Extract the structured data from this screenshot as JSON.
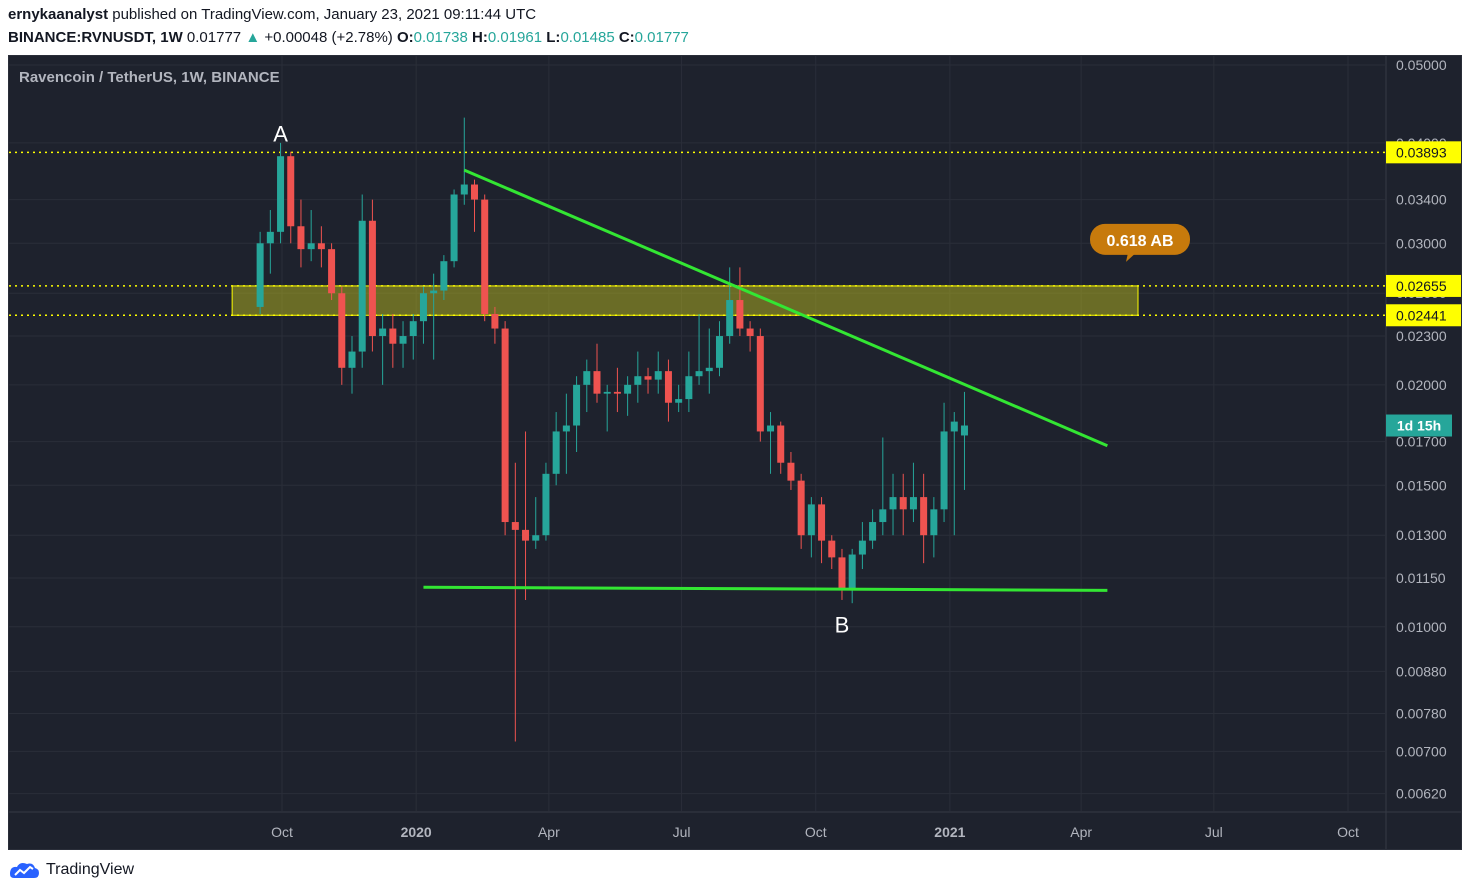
{
  "header": {
    "author": "ernykaanalyst",
    "published_text": "published on TradingView.com, January 23, 2021 09:11:44 UTC",
    "symbol": "BINANCE:RVNUSDT, 1W",
    "last": "0.01777",
    "change": "+0.00048 (+2.78%)",
    "o_label": "O:",
    "o": "0.01738",
    "h_label": "H:",
    "h": "0.01961",
    "l_label": "L:",
    "l": "0.01485",
    "c_label": "C:",
    "c": "0.01777"
  },
  "chart_title": "Ravencoin / TetherUS, 1W, BINANCE",
  "footer": {
    "brand": "TradingView"
  },
  "colors": {
    "bg": "#1e222d",
    "up": "#26a69a",
    "down": "#ef5350",
    "trend": "#33e633",
    "level": "#ffff00",
    "zone": "#b5b520",
    "bubble": "#c77a0c"
  },
  "chart_data": {
    "type": "candlestick",
    "title": "Ravencoin / TetherUS, 1W, BINANCE",
    "scale": "log",
    "ylim": [
      0.0059,
      0.0513
    ],
    "y_ticks": [
      "0.05000",
      "0.04000",
      "0.03400",
      "0.03000",
      "0.02600",
      "0.02300",
      "0.02000",
      "0.01700",
      "0.01500",
      "0.01300",
      "0.01150",
      "0.01000",
      "0.00880",
      "0.00780",
      "0.00700",
      "0.00620"
    ],
    "x_ticks": [
      {
        "label": "Oct",
        "date": "2019-10-01"
      },
      {
        "label": "2020",
        "date": "2020-01-01",
        "bold": true
      },
      {
        "label": "Apr",
        "date": "2020-04-01"
      },
      {
        "label": "Jul",
        "date": "2020-07-01"
      },
      {
        "label": "Oct",
        "date": "2020-10-01"
      },
      {
        "label": "2021",
        "date": "2021-01-01",
        "bold": true
      },
      {
        "label": "Apr",
        "date": "2021-04-01"
      },
      {
        "label": "Jul",
        "date": "2021-07-01"
      },
      {
        "label": "Oct",
        "date": "2021-10-01"
      }
    ],
    "candles": [
      {
        "date": "2019-09-16",
        "o": 0.025,
        "h": 0.031,
        "l": 0.0245,
        "c": 0.03
      },
      {
        "date": "2019-09-23",
        "o": 0.03,
        "h": 0.033,
        "l": 0.0275,
        "c": 0.031
      },
      {
        "date": "2019-09-30",
        "o": 0.031,
        "h": 0.04,
        "l": 0.03,
        "c": 0.0385
      },
      {
        "date": "2019-10-07",
        "o": 0.0385,
        "h": 0.039,
        "l": 0.03,
        "c": 0.0315
      },
      {
        "date": "2019-10-14",
        "o": 0.0315,
        "h": 0.034,
        "l": 0.028,
        "c": 0.0295
      },
      {
        "date": "2019-10-21",
        "o": 0.0295,
        "h": 0.033,
        "l": 0.0285,
        "c": 0.03
      },
      {
        "date": "2019-10-28",
        "o": 0.03,
        "h": 0.0315,
        "l": 0.028,
        "c": 0.0295
      },
      {
        "date": "2019-11-04",
        "o": 0.0295,
        "h": 0.03,
        "l": 0.0255,
        "c": 0.026
      },
      {
        "date": "2019-11-11",
        "o": 0.026,
        "h": 0.0265,
        "l": 0.02,
        "c": 0.021
      },
      {
        "date": "2019-11-18",
        "o": 0.021,
        "h": 0.023,
        "l": 0.0195,
        "c": 0.022
      },
      {
        "date": "2019-11-25",
        "o": 0.022,
        "h": 0.0345,
        "l": 0.021,
        "c": 0.032
      },
      {
        "date": "2019-12-02",
        "o": 0.032,
        "h": 0.034,
        "l": 0.022,
        "c": 0.023
      },
      {
        "date": "2019-12-09",
        "o": 0.023,
        "h": 0.0245,
        "l": 0.02,
        "c": 0.0235
      },
      {
        "date": "2019-12-16",
        "o": 0.0235,
        "h": 0.0245,
        "l": 0.021,
        "c": 0.0225
      },
      {
        "date": "2019-12-23",
        "o": 0.0225,
        "h": 0.024,
        "l": 0.021,
        "c": 0.023
      },
      {
        "date": "2019-12-30",
        "o": 0.023,
        "h": 0.0245,
        "l": 0.0215,
        "c": 0.024
      },
      {
        "date": "2020-01-06",
        "o": 0.024,
        "h": 0.0265,
        "l": 0.0225,
        "c": 0.026
      },
      {
        "date": "2020-01-13",
        "o": 0.026,
        "h": 0.0275,
        "l": 0.0215,
        "c": 0.0262
      },
      {
        "date": "2020-01-20",
        "o": 0.0262,
        "h": 0.029,
        "l": 0.0255,
        "c": 0.0285
      },
      {
        "date": "2020-01-27",
        "o": 0.0285,
        "h": 0.035,
        "l": 0.028,
        "c": 0.0345
      },
      {
        "date": "2020-02-03",
        "o": 0.0345,
        "h": 0.043,
        "l": 0.0335,
        "c": 0.0355
      },
      {
        "date": "2020-02-10",
        "o": 0.0355,
        "h": 0.036,
        "l": 0.031,
        "c": 0.034
      },
      {
        "date": "2020-02-17",
        "o": 0.034,
        "h": 0.0345,
        "l": 0.024,
        "c": 0.0245
      },
      {
        "date": "2020-02-24",
        "o": 0.0245,
        "h": 0.025,
        "l": 0.0225,
        "c": 0.0235
      },
      {
        "date": "2020-03-02",
        "o": 0.0235,
        "h": 0.024,
        "l": 0.013,
        "c": 0.0135
      },
      {
        "date": "2020-03-09",
        "o": 0.0135,
        "h": 0.016,
        "l": 0.0072,
        "c": 0.0132
      },
      {
        "date": "2020-03-16",
        "o": 0.0132,
        "h": 0.0175,
        "l": 0.0108,
        "c": 0.0128
      },
      {
        "date": "2020-03-23",
        "o": 0.0128,
        "h": 0.0145,
        "l": 0.0125,
        "c": 0.013
      },
      {
        "date": "2020-03-30",
        "o": 0.013,
        "h": 0.016,
        "l": 0.0128,
        "c": 0.0155
      },
      {
        "date": "2020-04-06",
        "o": 0.0155,
        "h": 0.0185,
        "l": 0.015,
        "c": 0.0175
      },
      {
        "date": "2020-04-13",
        "o": 0.0175,
        "h": 0.0195,
        "l": 0.0155,
        "c": 0.0178
      },
      {
        "date": "2020-04-20",
        "o": 0.0178,
        "h": 0.0205,
        "l": 0.0165,
        "c": 0.02
      },
      {
        "date": "2020-04-27",
        "o": 0.02,
        "h": 0.0215,
        "l": 0.0185,
        "c": 0.0208
      },
      {
        "date": "2020-05-04",
        "o": 0.0208,
        "h": 0.0225,
        "l": 0.019,
        "c": 0.0195
      },
      {
        "date": "2020-05-11",
        "o": 0.0195,
        "h": 0.02,
        "l": 0.0175,
        "c": 0.0196
      },
      {
        "date": "2020-05-18",
        "o": 0.0196,
        "h": 0.021,
        "l": 0.0185,
        "c": 0.0195
      },
      {
        "date": "2020-05-25",
        "o": 0.0195,
        "h": 0.0205,
        "l": 0.0183,
        "c": 0.02
      },
      {
        "date": "2020-06-01",
        "o": 0.02,
        "h": 0.022,
        "l": 0.019,
        "c": 0.0205
      },
      {
        "date": "2020-06-08",
        "o": 0.0205,
        "h": 0.021,
        "l": 0.0195,
        "c": 0.0203
      },
      {
        "date": "2020-06-15",
        "o": 0.0203,
        "h": 0.022,
        "l": 0.0195,
        "c": 0.0208
      },
      {
        "date": "2020-06-22",
        "o": 0.0208,
        "h": 0.0215,
        "l": 0.018,
        "c": 0.019
      },
      {
        "date": "2020-06-29",
        "o": 0.019,
        "h": 0.02,
        "l": 0.0185,
        "c": 0.0192
      },
      {
        "date": "2020-07-06",
        "o": 0.0192,
        "h": 0.022,
        "l": 0.0185,
        "c": 0.0205
      },
      {
        "date": "2020-07-13",
        "o": 0.0205,
        "h": 0.0245,
        "l": 0.02,
        "c": 0.0208
      },
      {
        "date": "2020-07-20",
        "o": 0.0208,
        "h": 0.0235,
        "l": 0.0195,
        "c": 0.021
      },
      {
        "date": "2020-07-27",
        "o": 0.021,
        "h": 0.024,
        "l": 0.0205,
        "c": 0.023
      },
      {
        "date": "2020-08-03",
        "o": 0.023,
        "h": 0.028,
        "l": 0.0225,
        "c": 0.0255
      },
      {
        "date": "2020-08-10",
        "o": 0.0255,
        "h": 0.028,
        "l": 0.023,
        "c": 0.0235
      },
      {
        "date": "2020-08-17",
        "o": 0.0235,
        "h": 0.024,
        "l": 0.022,
        "c": 0.023
      },
      {
        "date": "2020-08-24",
        "o": 0.023,
        "h": 0.0235,
        "l": 0.017,
        "c": 0.0175
      },
      {
        "date": "2020-08-31",
        "o": 0.0175,
        "h": 0.0185,
        "l": 0.0155,
        "c": 0.0178
      },
      {
        "date": "2020-09-07",
        "o": 0.0178,
        "h": 0.018,
        "l": 0.0155,
        "c": 0.016
      },
      {
        "date": "2020-09-14",
        "o": 0.016,
        "h": 0.0165,
        "l": 0.0148,
        "c": 0.0152
      },
      {
        "date": "2020-09-21",
        "o": 0.0152,
        "h": 0.0155,
        "l": 0.0125,
        "c": 0.013
      },
      {
        "date": "2020-09-28",
        "o": 0.013,
        "h": 0.0145,
        "l": 0.0122,
        "c": 0.0142
      },
      {
        "date": "2020-10-05",
        "o": 0.0142,
        "h": 0.0145,
        "l": 0.012,
        "c": 0.0128
      },
      {
        "date": "2020-10-12",
        "o": 0.0128,
        "h": 0.013,
        "l": 0.0118,
        "c": 0.0122
      },
      {
        "date": "2020-10-19",
        "o": 0.0122,
        "h": 0.0125,
        "l": 0.0108,
        "c": 0.0111
      },
      {
        "date": "2020-10-26",
        "o": 0.0111,
        "h": 0.0125,
        "l": 0.0107,
        "c": 0.0123
      },
      {
        "date": "2020-11-02",
        "o": 0.0123,
        "h": 0.0135,
        "l": 0.0118,
        "c": 0.0128
      },
      {
        "date": "2020-11-09",
        "o": 0.0128,
        "h": 0.014,
        "l": 0.0125,
        "c": 0.0135
      },
      {
        "date": "2020-11-16",
        "o": 0.0135,
        "h": 0.0172,
        "l": 0.013,
        "c": 0.014
      },
      {
        "date": "2020-11-23",
        "o": 0.014,
        "h": 0.0155,
        "l": 0.013,
        "c": 0.0145
      },
      {
        "date": "2020-11-30",
        "o": 0.0145,
        "h": 0.0155,
        "l": 0.013,
        "c": 0.014
      },
      {
        "date": "2020-12-07",
        "o": 0.014,
        "h": 0.016,
        "l": 0.0135,
        "c": 0.0145
      },
      {
        "date": "2020-12-14",
        "o": 0.0145,
        "h": 0.0155,
        "l": 0.012,
        "c": 0.013
      },
      {
        "date": "2020-12-21",
        "o": 0.013,
        "h": 0.0145,
        "l": 0.0122,
        "c": 0.014
      },
      {
        "date": "2020-12-28",
        "o": 0.014,
        "h": 0.019,
        "l": 0.0135,
        "c": 0.0175
      },
      {
        "date": "2021-01-04",
        "o": 0.0175,
        "h": 0.0185,
        "l": 0.013,
        "c": 0.018
      },
      {
        "date": "2021-01-11",
        "o": 0.0173,
        "h": 0.0196,
        "l": 0.0148,
        "c": 0.0178
      }
    ],
    "horizontal_levels": [
      {
        "price": 0.03893,
        "label": "0.03893"
      },
      {
        "price": 0.02655,
        "label": "0.02655"
      },
      {
        "price": 0.02441,
        "label": "0.02441"
      }
    ],
    "zone": {
      "from_date": "2019-09-16",
      "to_date": "2021-05-10",
      "low": 0.02441,
      "high": 0.02655
    },
    "trendlines": [
      {
        "name": "descending resistance",
        "from": {
          "date": "2020-02-03",
          "price": 0.037
        },
        "to": {
          "date": "2021-04-19",
          "price": 0.0168
        }
      },
      {
        "name": "support",
        "from": {
          "date": "2020-01-06",
          "price": 0.0112
        },
        "to": {
          "date": "2021-04-19",
          "price": 0.0111
        }
      }
    ],
    "annotations": [
      {
        "text": "A",
        "date": "2019-09-30",
        "price": 0.0412
      },
      {
        "text": "B",
        "date": "2020-10-19",
        "price": 0.0101
      },
      {
        "text": "0.618 AB",
        "date": "2021-05-10",
        "price": 0.0303
      }
    ],
    "countdown_label": "1d 15h"
  }
}
